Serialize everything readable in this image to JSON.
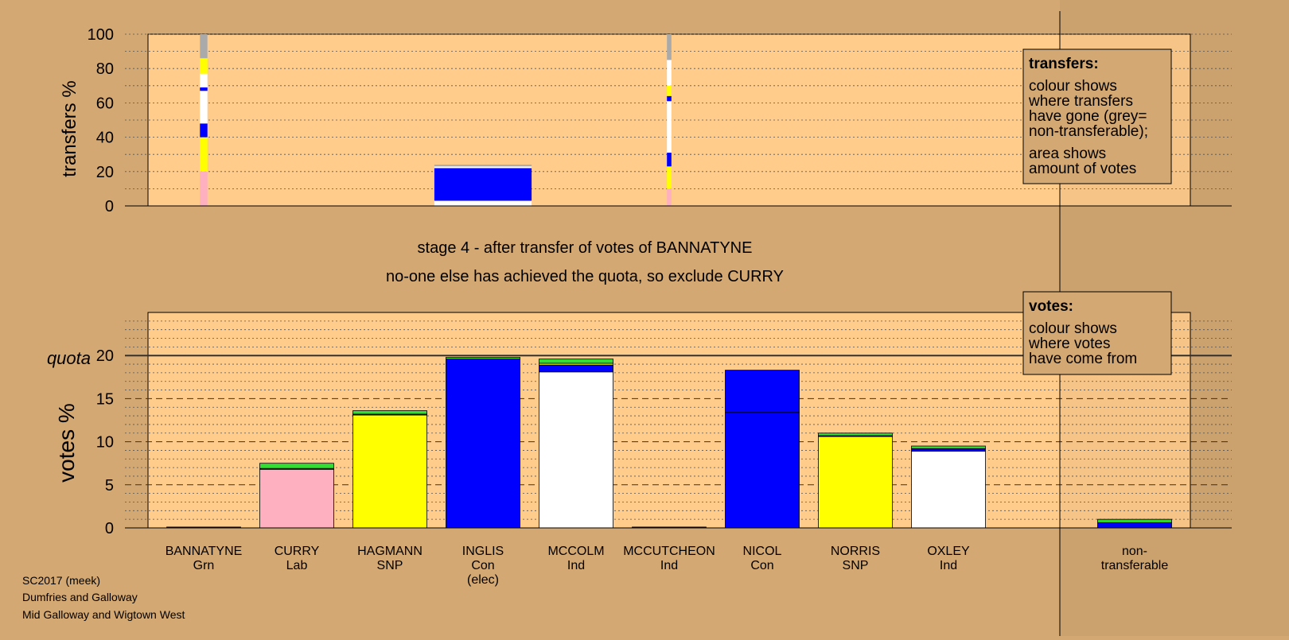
{
  "colors": {
    "page_bg": "#d4a872",
    "plot_bg": "#ffcc8c",
    "Grn": "#ffb0c0",
    "Lab": "#ffb0c0",
    "SNP": "#ffff00",
    "Con": "#0000ff",
    "Ind": "#ffffff",
    "nontransferable": "#aaaaaa",
    "other": "#33dd33"
  },
  "stage_title": "stage 4 - after transfer of votes of BANNATYNE",
  "stage_subtitle": "no-one else has achieved the quota, so exclude CURRY",
  "footer": [
    "SC2017 (meek)",
    "Dumfries and Galloway",
    "Mid Galloway and Wigtown West"
  ],
  "legend_transfers": {
    "title": "transfers:",
    "lines": [
      "colour shows",
      "where transfers",
      "have gone (grey=",
      "non-transferable);"
    ],
    "lines2": [
      "area shows",
      "amount of votes"
    ]
  },
  "legend_votes": {
    "title": "votes:",
    "lines": [
      "colour shows",
      "where votes",
      "have come from"
    ]
  },
  "chart_data": [
    {
      "type": "bar",
      "title": "",
      "ylabel": "transfers %",
      "ylim": [
        0,
        100
      ],
      "yticks": [
        0,
        20,
        40,
        60,
        80,
        100
      ],
      "grid": true,
      "transfer_columns": [
        {
          "over": "BANNATYNE",
          "share": 2.0,
          "segments": [
            {
              "color": "#ffb0c0",
              "from": 0,
              "to": 20
            },
            {
              "color": "#ffff00",
              "from": 20,
              "to": 40
            },
            {
              "color": "#0000ff",
              "from": 40,
              "to": 48
            },
            {
              "color": "#ffffff",
              "from": 48,
              "to": 67
            },
            {
              "color": "#0000ff",
              "from": 67,
              "to": 69
            },
            {
              "color": "#ffffff",
              "from": 69,
              "to": 77
            },
            {
              "color": "#ffff00",
              "from": 77,
              "to": 86
            },
            {
              "color": "#ffffff",
              "from": 86,
              "to": 86
            },
            {
              "color": "#aaaaaa",
              "from": 86,
              "to": 100
            }
          ]
        },
        {
          "over": "INGLIS",
          "share": 26.0,
          "segments": [
            {
              "color": "#ffffff",
              "from": 0,
              "to": 3
            },
            {
              "color": "#0000ff",
              "from": 3,
              "to": 22
            },
            {
              "color": "#ffffff",
              "from": 22,
              "to": 23
            },
            {
              "color": "#aaaaaa",
              "from": 23,
              "to": 24
            }
          ]
        },
        {
          "over": "MCCUTCHEON",
          "share": 1.2,
          "segments": [
            {
              "color": "#ffb0c0",
              "from": 0,
              "to": 10
            },
            {
              "color": "#ffff00",
              "from": 10,
              "to": 23
            },
            {
              "color": "#0000ff",
              "from": 23,
              "to": 31
            },
            {
              "color": "#ffffff",
              "from": 31,
              "to": 61
            },
            {
              "color": "#0000ff",
              "from": 61,
              "to": 64
            },
            {
              "color": "#ffff00",
              "from": 64,
              "to": 70
            },
            {
              "color": "#ffffff",
              "from": 70,
              "to": 85
            },
            {
              "color": "#aaaaaa",
              "from": 85,
              "to": 100
            }
          ]
        }
      ]
    },
    {
      "type": "bar",
      "title": "",
      "ylabel": "votes %",
      "ylim": [
        0,
        25
      ],
      "yticks": [
        0,
        5,
        10,
        15,
        20
      ],
      "quota": 20,
      "quota_label": "quota",
      "grid": true,
      "categories": [
        {
          "name": "BANNATYNE",
          "party": "Grn",
          "note": "",
          "segments": [
            {
              "color": "#0000ff",
              "value": 0.1
            }
          ]
        },
        {
          "name": "CURRY",
          "party": "Lab",
          "note": "",
          "segments": [
            {
              "color": "#ffb0c0",
              "value": 6.8
            },
            {
              "color": "#0000ff",
              "value": 0.1
            },
            {
              "color": "#33dd33",
              "value": 0.6
            }
          ]
        },
        {
          "name": "HAGMANN",
          "party": "SNP",
          "note": "",
          "segments": [
            {
              "color": "#ffff00",
              "value": 13.1
            },
            {
              "color": "#0000ff",
              "value": 0.1
            },
            {
              "color": "#33dd33",
              "value": 0.4
            }
          ]
        },
        {
          "name": "INGLIS",
          "party": "Con",
          "note": "(elec)",
          "segments": [
            {
              "color": "#0000ff",
              "value": 19.6
            },
            {
              "color": "#33dd33",
              "value": 0.2
            }
          ]
        },
        {
          "name": "MCCOLM",
          "party": "Ind",
          "note": "",
          "segments": [
            {
              "color": "#ffffff",
              "value": 18.1
            },
            {
              "color": "#0000ff",
              "value": 0.8
            },
            {
              "color": "#ffff00",
              "value": 0.2
            },
            {
              "color": "#33dd33",
              "value": 0.5
            }
          ]
        },
        {
          "name": "MCCUTCHEON",
          "party": "Ind",
          "note": "",
          "segments": [
            {
              "color": "#0000ff",
              "value": 0.1
            }
          ]
        },
        {
          "name": "NICOL",
          "party": "Con",
          "note": "",
          "segments": [
            {
              "color": "#0000ff",
              "value": 13.4
            },
            {
              "color": "#0000ff",
              "value": 4.9
            }
          ]
        },
        {
          "name": "NORRIS",
          "party": "SNP",
          "note": "",
          "segments": [
            {
              "color": "#ffff00",
              "value": 10.6
            },
            {
              "color": "#0000ff",
              "value": 0.1
            },
            {
              "color": "#33dd33",
              "value": 0.3
            }
          ]
        },
        {
          "name": "OXLEY",
          "party": "Ind",
          "note": "",
          "segments": [
            {
              "color": "#ffffff",
              "value": 8.9
            },
            {
              "color": "#0000ff",
              "value": 0.3
            },
            {
              "color": "#33dd33",
              "value": 0.3
            }
          ]
        }
      ],
      "nontransferable": {
        "label": [
          "non-",
          "transferable"
        ],
        "segments": [
          {
            "color": "#0000ff",
            "value": 0.6
          },
          {
            "color": "#33dd33",
            "value": 0.4
          }
        ]
      }
    }
  ]
}
